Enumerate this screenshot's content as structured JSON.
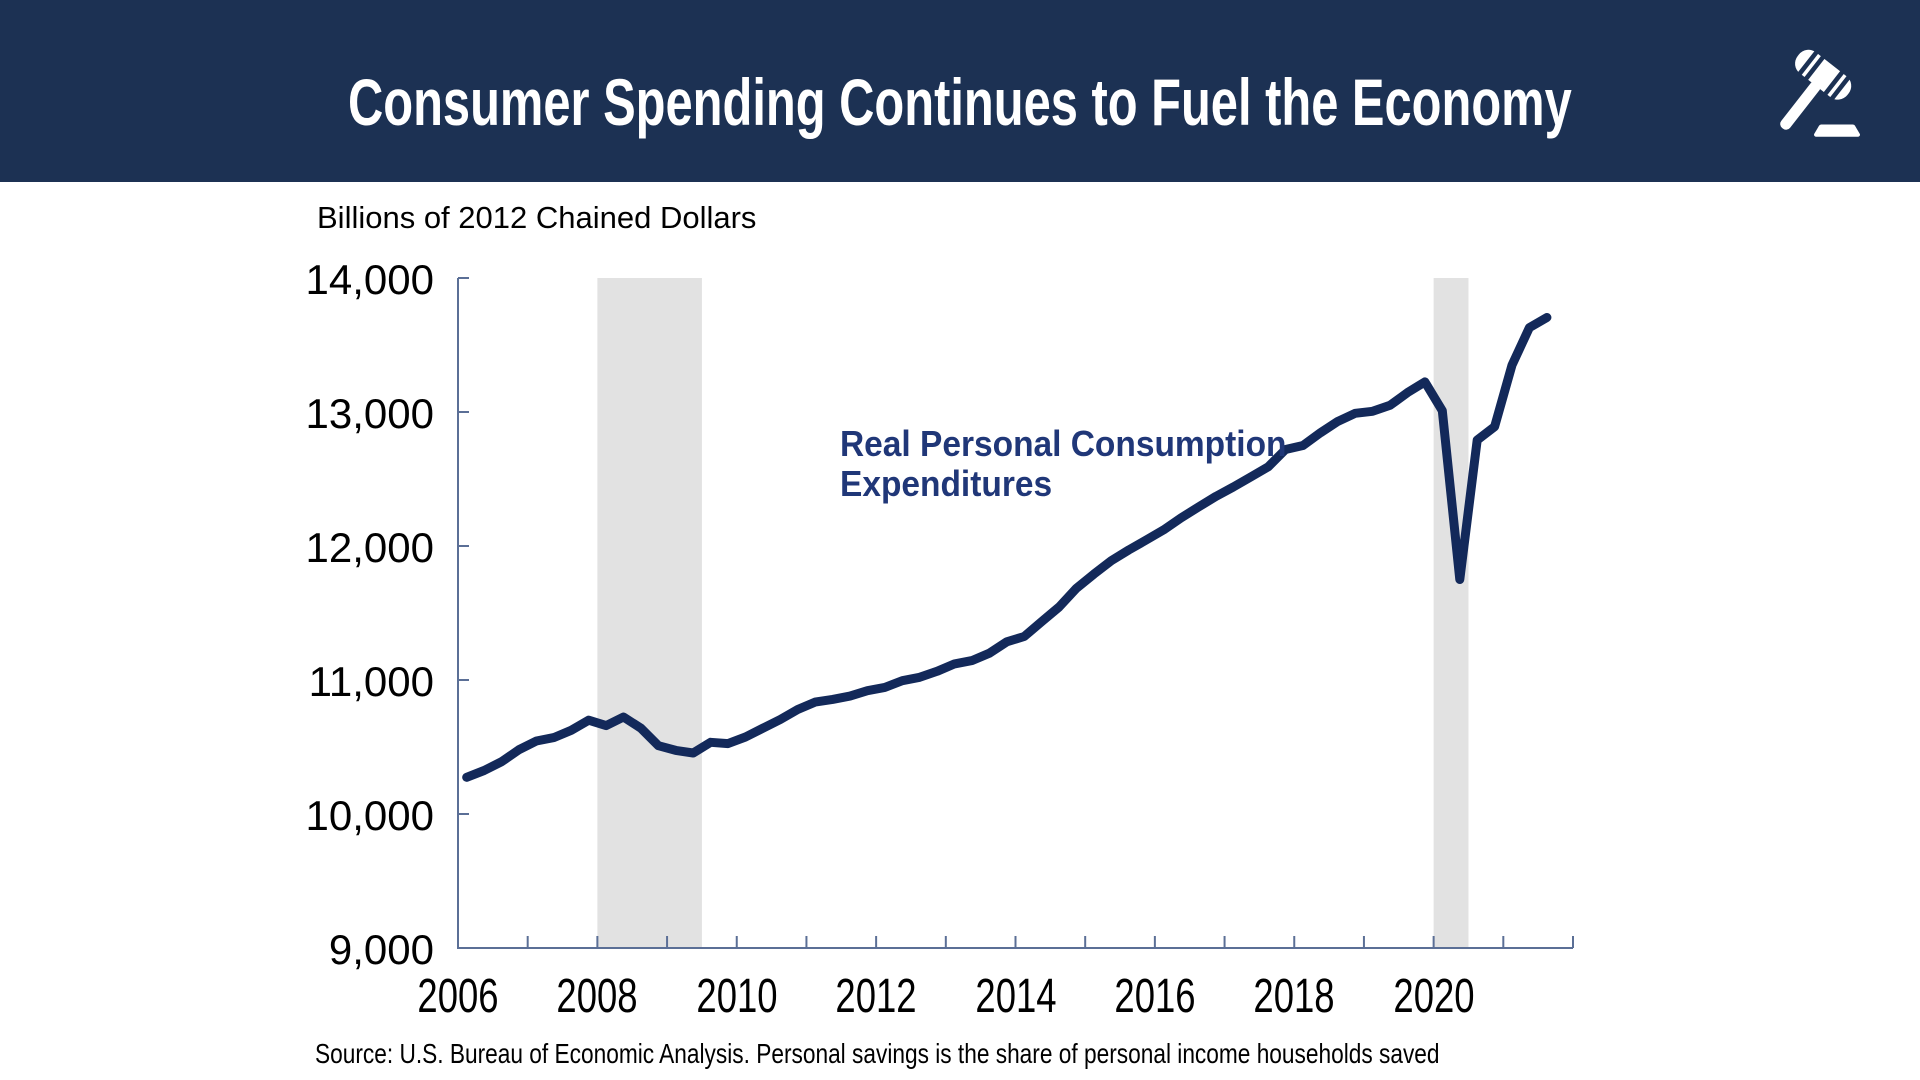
{
  "header": {
    "title": "Consumer Spending Continues to Fuel the Economy",
    "logo_icon": "gavel-icon"
  },
  "colors": {
    "header_bg": "#1c3153",
    "title_text": "#ffffff",
    "line": "#13295a",
    "annotation_text": "#203778",
    "recession_band": "#e2e2e2",
    "axis": "#5b6f96",
    "label_text": "#000000"
  },
  "chart_data": {
    "type": "line",
    "axis_title_y": "Billions of 2012 Chained Dollars",
    "annotation": {
      "lines": [
        "Real Personal Consumption",
        "Expenditures"
      ]
    },
    "x_axis": {
      "min": 2006,
      "max": 2022,
      "tick_interval": 1,
      "label_values": [
        2006,
        2008,
        2010,
        2012,
        2014,
        2016,
        2018,
        2020
      ],
      "label_texts": [
        "2006",
        "2008",
        "2010",
        "2012",
        "2014",
        "2016",
        "2018",
        "2020"
      ]
    },
    "y_axis": {
      "min": 9000,
      "max": 14000,
      "tick_interval": 1000,
      "tick_values": [
        9000,
        10000,
        11000,
        12000,
        13000,
        14000
      ],
      "tick_labels": [
        "9,000",
        "10,000",
        "11,000",
        "12,000",
        "13,000",
        "14,000"
      ]
    },
    "grid": false,
    "recession_bands": [
      {
        "from": 2008.0,
        "to": 2009.5
      },
      {
        "from": 2020.0,
        "to": 2020.5
      }
    ],
    "series": [
      {
        "name": "Real Personal Consumption Expenditures",
        "x_start": 2006.125,
        "x_step": 0.25,
        "values": [
          10274,
          10325,
          10390,
          10480,
          10545,
          10570,
          10625,
          10700,
          10660,
          10724,
          10640,
          10510,
          10475,
          10455,
          10535,
          10525,
          10575,
          10640,
          10705,
          10780,
          10835,
          10855,
          10880,
          10920,
          10945,
          10995,
          11020,
          11065,
          11120,
          11145,
          11200,
          11285,
          11325,
          11435,
          11545,
          11685,
          11790,
          11890,
          11970,
          12045,
          12120,
          12210,
          12290,
          12370,
          12440,
          12515,
          12590,
          12720,
          12750,
          12845,
          12930,
          12990,
          13005,
          13050,
          13145,
          13225,
          13010,
          11750,
          12790,
          12890,
          13350,
          13630,
          13705
        ]
      }
    ]
  },
  "footer": {
    "source": "Source: U.S. Bureau of Economic Analysis. Personal savings is the share of personal income households saved"
  }
}
